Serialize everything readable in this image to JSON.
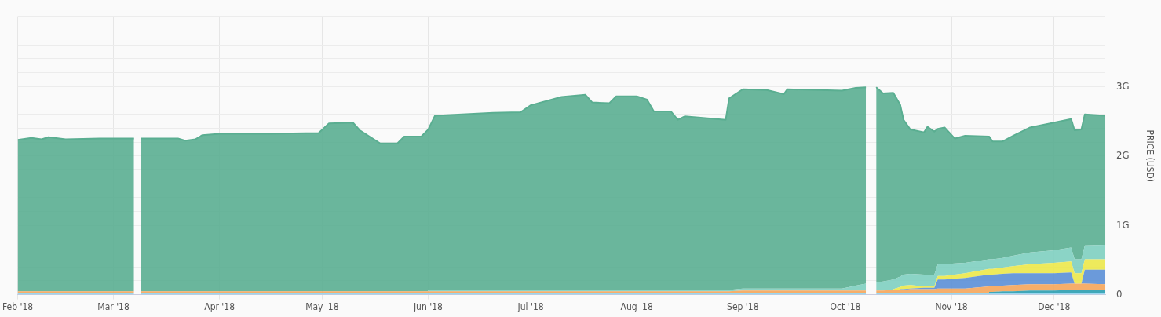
{
  "chart_data": {
    "type": "area",
    "stacked": true,
    "ylabel": "PRICE (USD)",
    "legend": false,
    "grid": true,
    "marker": "none",
    "x": [
      "2018-02-01",
      "2018-02-05",
      "2018-02-08",
      "2018-02-10",
      "2018-02-15",
      "2018-02-25",
      "2018-03-07",
      "2018-03-08",
      "2018-03-09",
      "2018-03-20",
      "2018-03-22",
      "2018-03-25",
      "2018-03-27",
      "2018-04-01",
      "2018-04-15",
      "2018-04-30",
      "2018-05-03",
      "2018-05-10",
      "2018-05-12",
      "2018-05-18",
      "2018-05-23",
      "2018-05-25",
      "2018-05-30",
      "2018-06-01",
      "2018-06-03",
      "2018-06-20",
      "2018-06-28",
      "2018-07-01",
      "2018-07-10",
      "2018-07-17",
      "2018-07-19",
      "2018-07-24",
      "2018-07-26",
      "2018-08-01",
      "2018-08-04",
      "2018-08-06",
      "2018-08-11",
      "2018-08-13",
      "2018-08-15",
      "2018-08-27",
      "2018-08-28",
      "2018-09-01",
      "2018-09-08",
      "2018-09-13",
      "2018-09-14",
      "2018-09-30",
      "2018-10-04",
      "2018-10-07",
      "2018-10-08",
      "2018-10-10",
      "2018-10-12",
      "2018-10-15",
      "2018-10-17",
      "2018-10-18",
      "2018-10-20",
      "2018-10-24",
      "2018-10-25",
      "2018-10-27",
      "2018-10-28",
      "2018-10-30",
      "2018-11-02",
      "2018-11-05",
      "2018-11-12",
      "2018-11-13",
      "2018-11-16",
      "2018-11-19",
      "2018-11-24",
      "2018-12-01",
      "2018-12-06",
      "2018-12-07",
      "2018-12-09",
      "2018-12-10",
      "2018-12-16"
    ],
    "series": [
      {
        "color": "#8fd3f0",
        "values": [
          0.03,
          0.03,
          0.03,
          0.03,
          0.03,
          0.03,
          0.03,
          null,
          0.03,
          0.03,
          0.03,
          0.03,
          0.03,
          0.03,
          0.03,
          0.03,
          0.03,
          0.03,
          0.03,
          0.03,
          0.03,
          0.03,
          0.03,
          0.03,
          0.03,
          0.03,
          0.03,
          0.03,
          0.03,
          0.03,
          0.03,
          0.03,
          0.03,
          0.03,
          0.03,
          0.03,
          0.03,
          0.03,
          0.03,
          0.03,
          0.03,
          0.03,
          0.03,
          0.03,
          0.03,
          0.03,
          0.03,
          0.03,
          null,
          0.02,
          0.02,
          0.02,
          0.02,
          0.02,
          0.02,
          0.02,
          0.02,
          0.02,
          0.02,
          0.02,
          0.02,
          0.02,
          0.02,
          0.02,
          0.02,
          0.02,
          0.02,
          0.02,
          0.02,
          0.02,
          0.02,
          0.02,
          0.02
        ]
      },
      {
        "color": "#2a9db0",
        "values": [
          null,
          null,
          null,
          null,
          null,
          null,
          null,
          null,
          null,
          null,
          null,
          null,
          null,
          null,
          null,
          null,
          null,
          null,
          null,
          null,
          null,
          null,
          null,
          null,
          null,
          null,
          null,
          null,
          null,
          null,
          null,
          null,
          null,
          null,
          null,
          null,
          null,
          null,
          null,
          null,
          null,
          null,
          null,
          null,
          null,
          null,
          null,
          null,
          null,
          null,
          null,
          null,
          null,
          null,
          null,
          null,
          null,
          null,
          null,
          null,
          null,
          null,
          0.02,
          0.02,
          0.03,
          0.03,
          0.04,
          0.04,
          0.05,
          0.05,
          0.05,
          0.05,
          0.05
        ]
      },
      {
        "color": "#f5a55a",
        "values": [
          0.02,
          0.02,
          0.02,
          0.02,
          0.02,
          0.02,
          0.02,
          null,
          0.02,
          0.02,
          0.02,
          0.02,
          0.02,
          0.02,
          0.02,
          0.02,
          0.02,
          0.02,
          0.02,
          0.02,
          0.02,
          0.02,
          0.02,
          0.02,
          0.02,
          0.02,
          0.02,
          0.02,
          0.02,
          0.02,
          0.02,
          0.02,
          0.02,
          0.02,
          0.02,
          0.02,
          0.02,
          0.02,
          0.02,
          0.02,
          0.02,
          0.03,
          0.03,
          0.03,
          0.03,
          0.03,
          0.03,
          0.03,
          null,
          0.04,
          0.04,
          0.05,
          0.05,
          0.05,
          0.06,
          0.06,
          0.06,
          0.06,
          0.07,
          0.07,
          0.07,
          0.07,
          0.08,
          0.08,
          0.08,
          0.09,
          0.09,
          0.09,
          0.09,
          0.09,
          0.09,
          0.09,
          0.08
        ]
      },
      {
        "color": "#5b8fd6",
        "values": [
          null,
          null,
          null,
          null,
          null,
          null,
          null,
          null,
          null,
          null,
          null,
          null,
          null,
          null,
          null,
          null,
          null,
          null,
          null,
          null,
          null,
          null,
          null,
          null,
          null,
          null,
          null,
          null,
          null,
          null,
          null,
          null,
          null,
          null,
          null,
          null,
          null,
          null,
          null,
          null,
          null,
          null,
          null,
          null,
          null,
          null,
          null,
          null,
          null,
          null,
          null,
          null,
          0.01,
          0.01,
          0.01,
          0.02,
          0.02,
          0.02,
          0.13,
          0.13,
          0.14,
          0.15,
          0.17,
          0.17,
          0.17,
          0.17,
          0.16,
          0.16,
          0.16,
          0,
          0,
          0.2,
          0.21
        ]
      },
      {
        "color": "#ece84a",
        "values": [
          null,
          null,
          null,
          null,
          null,
          null,
          null,
          null,
          null,
          null,
          null,
          null,
          null,
          null,
          null,
          null,
          null,
          null,
          null,
          null,
          null,
          null,
          null,
          null,
          null,
          null,
          null,
          null,
          null,
          null,
          null,
          null,
          null,
          null,
          null,
          null,
          null,
          null,
          null,
          null,
          null,
          null,
          null,
          null,
          null,
          null,
          null,
          null,
          null,
          null,
          null,
          0.01,
          0.03,
          0.05,
          0.05,
          0.02,
          0.02,
          0.02,
          0.05,
          0.05,
          0.06,
          0.07,
          0.08,
          0.08,
          0.09,
          0.1,
          0.13,
          0.15,
          0.16,
          0.15,
          0.15,
          0.15,
          0.15
        ]
      },
      {
        "color": "#7ecfc0",
        "values": [
          null,
          null,
          null,
          null,
          null,
          null,
          null,
          null,
          null,
          null,
          null,
          null,
          null,
          null,
          null,
          null,
          null,
          null,
          null,
          null,
          null,
          null,
          null,
          0.02,
          0.02,
          0.02,
          0.02,
          0.02,
          0.02,
          0.02,
          0.02,
          0.02,
          0.02,
          0.02,
          0.02,
          0.02,
          0.02,
          0.02,
          0.02,
          0.02,
          0.02,
          0.03,
          0.03,
          0.03,
          0.03,
          0.03,
          0.07,
          0.1,
          null,
          0.12,
          0.13,
          0.14,
          0.15,
          0.16,
          0.16,
          0.17,
          0.17,
          0.17,
          0.17,
          0.17,
          0.16,
          0.15,
          0.14,
          0.14,
          0.14,
          0.15,
          0.17,
          0.18,
          0.2,
          0.2,
          0.2,
          0.2,
          0.21
        ]
      },
      {
        "color": "#5aae91",
        "values": [
          2.18,
          2.21,
          2.19,
          2.22,
          2.19,
          2.2,
          2.2,
          null,
          2.2,
          2.2,
          2.17,
          2.19,
          2.25,
          2.27,
          2.27,
          2.28,
          2.42,
          2.43,
          2.32,
          2.13,
          2.13,
          2.23,
          2.23,
          2.31,
          2.51,
          2.55,
          2.56,
          2.66,
          2.78,
          2.81,
          2.7,
          2.69,
          2.79,
          2.79,
          2.74,
          2.57,
          2.57,
          2.45,
          2.5,
          2.45,
          2.76,
          2.87,
          2.86,
          2.8,
          2.87,
          2.85,
          2.85,
          2.83,
          null,
          2.81,
          2.71,
          2.69,
          2.48,
          2.23,
          2.08,
          2.05,
          2.13,
          2.06,
          1.95,
          1.97,
          1.8,
          1.83,
          1.77,
          1.7,
          1.68,
          1.73,
          1.8,
          1.84,
          1.85,
          1.86,
          1.87,
          1.89,
          1.86
        ]
      }
    ],
    "xlim": [
      "2018-02-01",
      "2018-12-16"
    ],
    "xticks": [
      {
        "value": "2018-02-01",
        "label": "Feb '18"
      },
      {
        "value": "2018-03-01",
        "label": "Mar '18"
      },
      {
        "value": "2018-04-01",
        "label": "Apr '18"
      },
      {
        "value": "2018-05-01",
        "label": "May '18"
      },
      {
        "value": "2018-06-01",
        "label": "Jun '18"
      },
      {
        "value": "2018-07-01",
        "label": "Jul '18"
      },
      {
        "value": "2018-08-01",
        "label": "Aug '18"
      },
      {
        "value": "2018-09-01",
        "label": "Sep '18"
      },
      {
        "value": "2018-10-01",
        "label": "Oct '18"
      },
      {
        "value": "2018-11-01",
        "label": "Nov '18"
      },
      {
        "value": "2018-12-01",
        "label": "Dec '18"
      }
    ],
    "ylim": [
      0,
      4
    ],
    "yticks": [
      0,
      {
        "value": 0.2,
        "label": null
      },
      {
        "value": 0.4,
        "label": null
      },
      {
        "value": 0.6,
        "label": null
      },
      {
        "value": 0.8,
        "label": null
      },
      {
        "value": 1,
        "label": "1G"
      },
      {
        "value": 1.2,
        "label": null
      },
      {
        "value": 1.4,
        "label": null
      },
      {
        "value": 1.6,
        "label": null
      },
      {
        "value": 1.8,
        "label": null
      },
      {
        "value": 2,
        "label": "2G"
      },
      {
        "value": 2.2,
        "label": null
      },
      {
        "value": 2.4,
        "label": null
      },
      {
        "value": 2.6,
        "label": null
      },
      {
        "value": 2.8,
        "label": null
      },
      {
        "value": 3,
        "label": "3G"
      },
      {
        "value": 3.2,
        "label": null
      },
      {
        "value": 3.4,
        "label": null
      },
      {
        "value": 3.6,
        "label": null
      },
      {
        "value": 3.8,
        "label": null
      },
      {
        "value": 4,
        "label": null
      }
    ]
  }
}
